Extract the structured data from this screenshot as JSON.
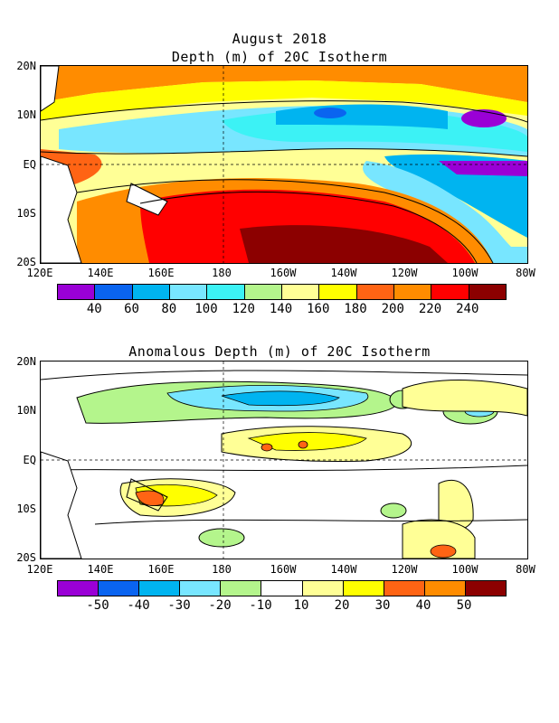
{
  "top": {
    "title_line1": "August 2018",
    "title_line2": "Depth (m) of 20C Isotherm",
    "lat_labels": [
      "20N",
      "10N",
      "EQ",
      "10S",
      "20S"
    ],
    "lon_labels": [
      "120E",
      "140E",
      "160E",
      "180",
      "160W",
      "140W",
      "120W",
      "100W",
      "80W"
    ],
    "legend_labels": [
      "40",
      "60",
      "80",
      "100",
      "120",
      "140",
      "160",
      "180",
      "200",
      "220",
      "240"
    ],
    "legend_colors": [
      "#9a00d6",
      "#0a64f0",
      "#00b4f0",
      "#78e6ff",
      "#3cf2f5",
      "#b4f58c",
      "#ffff96",
      "#ffff00",
      "#ff6414",
      "#ff8c00",
      "#ff0000",
      "#8c0000"
    ]
  },
  "bottom": {
    "title": "Anomalous Depth (m) of 20C Isotherm",
    "lat_labels": [
      "20N",
      "10N",
      "EQ",
      "10S",
      "20S"
    ],
    "lon_labels": [
      "120E",
      "140E",
      "160E",
      "180",
      "160W",
      "140W",
      "120W",
      "100W",
      "80W"
    ],
    "legend_labels": [
      "-50",
      "-40",
      "-30",
      "-20",
      "-10",
      "10",
      "20",
      "30",
      "40",
      "50"
    ],
    "legend_colors": [
      "#9a00d6",
      "#0a64f0",
      "#00b4f0",
      "#78e6ff",
      "#b4f58c",
      "#ffffff",
      "#ffff96",
      "#ffff00",
      "#ff6414",
      "#ff8c00",
      "#8c0000"
    ]
  }
}
